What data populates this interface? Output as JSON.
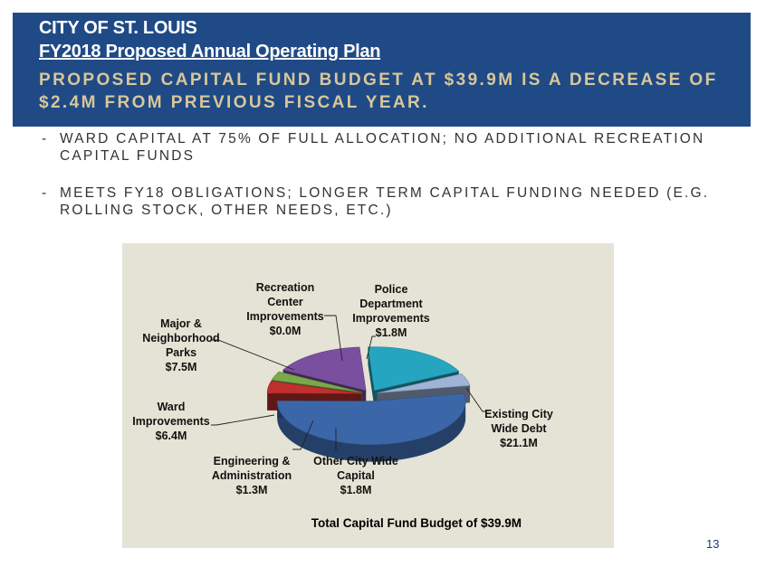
{
  "header": {
    "city": "CITY OF ST. LOUIS",
    "plan": "FY2018 Proposed Annual Operating Plan",
    "subtitle": "PROPOSED CAPITAL FUND BUDGET AT $39.9M IS A DECREASE OF $2.4M FROM PREVIOUS FISCAL YEAR."
  },
  "bullets": [
    "WARD CAPITAL AT 75% OF FULL ALLOCATION; NO ADDITIONAL RECREATION CAPITAL FUNDS",
    "MEETS FY18 OBLIGATIONS; LONGER TERM CAPITAL FUNDING NEEDED (E.G. ROLLING STOCK, OTHER NEEDS, ETC.)"
  ],
  "bullet_marker": "-",
  "chart_data": {
    "type": "pie",
    "style": "3d-exploded",
    "title": "Total Capital Fund Budget of $39.9M",
    "unit": "$M",
    "slices": [
      {
        "name": "Existing City Wide Debt",
        "value": 21.1,
        "value_label": "$21.1M",
        "color": "#3b67a8"
      },
      {
        "name": "Other City Wide Capital",
        "value": 1.8,
        "value_label": "$1.8M",
        "color": "#c0302e"
      },
      {
        "name": "Engineering & Administration",
        "value": 1.3,
        "value_label": "$1.3M",
        "color": "#7aa84a"
      },
      {
        "name": "Ward Improvements",
        "value": 6.4,
        "value_label": "$6.4M",
        "color": "#7a4fa0"
      },
      {
        "name": "Major & Neighborhood Parks",
        "value": 7.5,
        "value_label": "$7.5M",
        "color": "#25a5c0"
      },
      {
        "name": "Recreation Center Improvements",
        "value": 0.0,
        "value_label": "$0.0M",
        "color": "#e3872a"
      },
      {
        "name": "Police Department Improvements",
        "value": 1.8,
        "value_label": "$1.8M",
        "color": "#9fb3d6"
      }
    ]
  },
  "page_number": "13"
}
